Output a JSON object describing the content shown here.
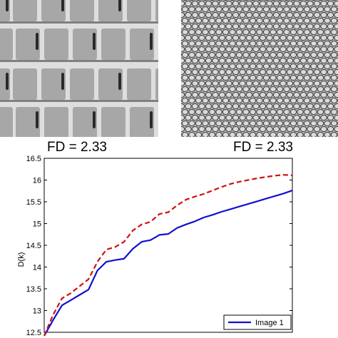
{
  "images": [
    {
      "name": "grid-texture-image",
      "fd_label": "FD = 2.33"
    },
    {
      "name": "scale-texture-image",
      "fd_label": "FD = 2.33"
    }
  ],
  "colors": {
    "series_1": "#1010d0",
    "series_2": "#d01010",
    "grid_tile": "#a7a7a7",
    "grid_line": "#dedede"
  },
  "chart_data": {
    "type": "line",
    "title": "",
    "xlabel": "",
    "ylabel": "D(k)",
    "ylim": [
      12.5,
      16.5
    ],
    "yticks": [
      "12.5",
      "13",
      "13.5",
      "14",
      "14.5",
      "15",
      "15.5",
      "16",
      "16.5"
    ],
    "x": [
      0,
      1,
      2,
      3,
      4,
      5,
      6,
      7,
      8,
      9,
      10,
      11,
      12,
      13,
      14,
      15,
      16,
      17,
      18,
      19,
      20,
      21,
      22,
      23,
      24,
      25,
      26,
      27,
      28
    ],
    "legend_position": "bottom-right",
    "series": [
      {
        "name": "Image 1",
        "style": "solid",
        "color": "#1010d0",
        "values": [
          12.42,
          12.78,
          13.12,
          13.24,
          13.36,
          13.48,
          13.92,
          14.12,
          14.16,
          14.19,
          14.42,
          14.58,
          14.62,
          14.74,
          14.76,
          14.9,
          14.98,
          15.05,
          15.14,
          15.2,
          15.27,
          15.33,
          15.39,
          15.45,
          15.51,
          15.57,
          15.63,
          15.69,
          15.76
        ]
      },
      {
        "name": "",
        "style": "dashed",
        "color": "#d01010",
        "values": [
          12.42,
          12.9,
          13.28,
          13.4,
          13.56,
          13.72,
          14.12,
          14.4,
          14.46,
          14.58,
          14.84,
          14.98,
          15.04,
          15.22,
          15.26,
          15.42,
          15.55,
          15.62,
          15.68,
          15.76,
          15.84,
          15.91,
          15.96,
          16.0,
          16.04,
          16.07,
          16.1,
          16.12,
          16.11
        ]
      }
    ]
  }
}
